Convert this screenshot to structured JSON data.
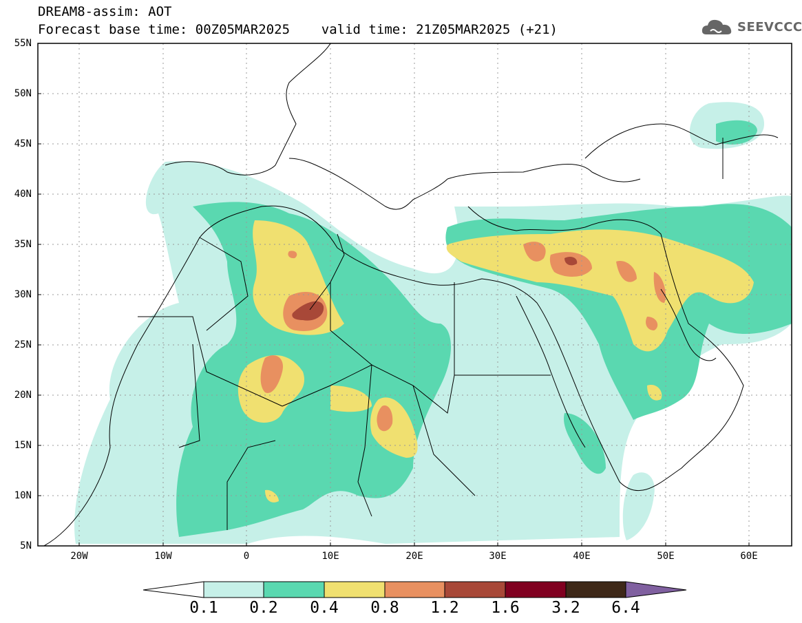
{
  "title": {
    "line1": "DREAM8-assim: AOT",
    "line2": "Forecast base time: 00Z05MAR2025    valid time: 21Z05MAR2025 (+21)"
  },
  "logo": {
    "text": "SEEVCCC",
    "icon": "cloud-icon"
  },
  "map": {
    "lon_range": [
      -25,
      65
    ],
    "lat_range": [
      5,
      55
    ],
    "grid": true,
    "x_ticks": [
      "20W",
      "10W",
      "0",
      "10E",
      "20E",
      "30E",
      "40E",
      "50E",
      "60E"
    ],
    "y_ticks": [
      "5N",
      "10N",
      "15N",
      "20N",
      "25N",
      "30N",
      "35N",
      "40N",
      "45N",
      "50N",
      "55N"
    ]
  },
  "colorbar": {
    "labels": [
      "0.1",
      "0.2",
      "0.4",
      "0.8",
      "1.2",
      "1.6",
      "3.2",
      "6.4"
    ],
    "colors": [
      "#c6f0e8",
      "#5ad8b0",
      "#f0e070",
      "#e89060",
      "#a84838",
      "#800020",
      "#3e2818",
      "#8060a0"
    ]
  }
}
